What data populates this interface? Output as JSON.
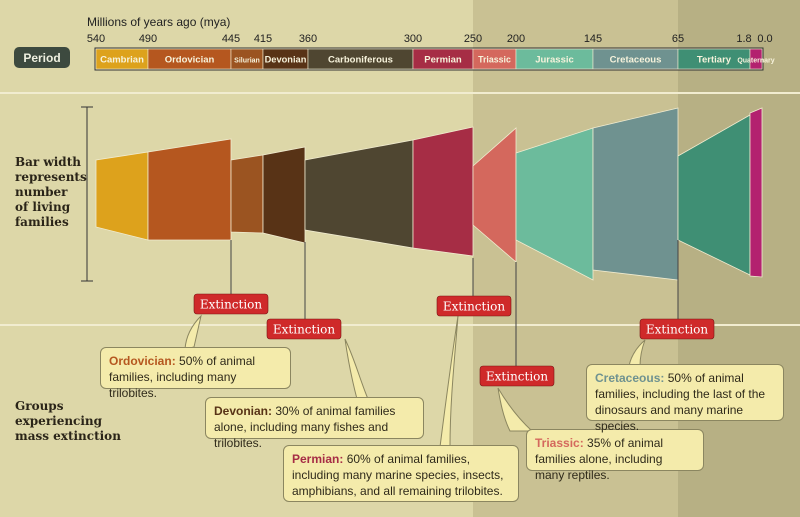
{
  "colors": {
    "background": "#ddd7a8",
    "mesozoic_band": "#c9c193",
    "cenozoic_band": "#b7b084",
    "note_fill": "#f4ebab",
    "extinction_badge": "#cf2a2a"
  },
  "header": {
    "title": "Millions of years ago (mya)",
    "period_label": "Period"
  },
  "left_labels": {
    "bar_width_lines": [
      "Bar width",
      "represents",
      "number",
      "of living",
      "families"
    ],
    "groups_lines": [
      "Groups",
      "experiencing",
      "mass extinction"
    ]
  },
  "timeline": {
    "ticks": [
      "540",
      "490",
      "445",
      "415",
      "360",
      "300",
      "250",
      "200",
      "145",
      "65",
      "1.8",
      "0.0"
    ],
    "periods": [
      {
        "name": "Cambrian",
        "start_mya": 540,
        "end_mya": 490,
        "color": "#dda21c"
      },
      {
        "name": "Ordovician",
        "start_mya": 490,
        "end_mya": 445,
        "color": "#b5571f"
      },
      {
        "name": "Silurian",
        "start_mya": 445,
        "end_mya": 415,
        "color": "#9b5421"
      },
      {
        "name": "Devonian",
        "start_mya": 415,
        "end_mya": 360,
        "color": "#583316"
      },
      {
        "name": "Carboniferous",
        "start_mya": 360,
        "end_mya": 300,
        "color": "#4f4631"
      },
      {
        "name": "Permian",
        "start_mya": 300,
        "end_mya": 250,
        "color": "#a62d45"
      },
      {
        "name": "Triassic",
        "start_mya": 250,
        "end_mya": 200,
        "color": "#d4685d"
      },
      {
        "name": "Jurassic",
        "start_mya": 200,
        "end_mya": 145,
        "color": "#6cbb9c"
      },
      {
        "name": "Cretaceous",
        "start_mya": 145,
        "end_mya": 65,
        "color": "#6f9290"
      },
      {
        "name": "Tertiary",
        "start_mya": 65,
        "end_mya": 1.8,
        "color": "#3f8f74"
      },
      {
        "name": "Quaternary",
        "start_mya": 1.8,
        "end_mya": 0,
        "color": "#b3216f"
      }
    ]
  },
  "extinction_label": "Extinction",
  "extinctions": [
    {
      "group": "Ordovician",
      "text": "50% of animal families, including many trilobites.",
      "color": "#b5571f"
    },
    {
      "group": "Devonian",
      "text": "30% of animal families alone, including many fishes and trilobites.",
      "color": "#583316"
    },
    {
      "group": "Permian",
      "text": "60% of animal families, including many marine species, insects, amphibians, and all remaining trilobites.",
      "color": "#a62d45"
    },
    {
      "group": "Triassic",
      "text": "35% of animal families alone, including many reptiles.",
      "color": "#d4685d"
    },
    {
      "group": "Cretaceous",
      "text": "50% of animal families, including the last of the dinosaurs and many marine species.",
      "color": "#6f9290"
    }
  ]
}
